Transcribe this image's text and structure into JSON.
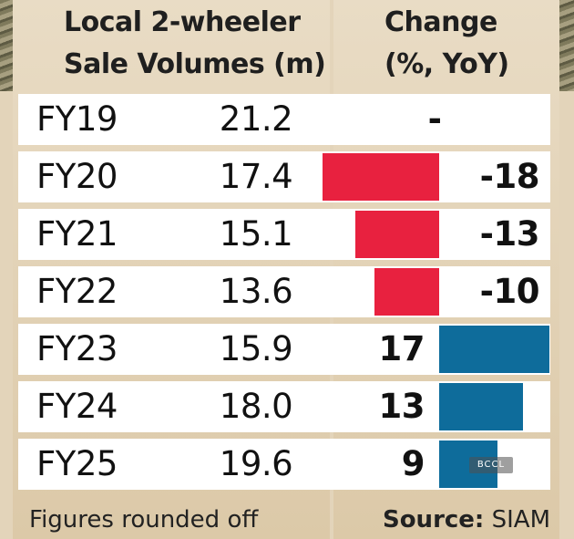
{
  "header": {
    "left_line1": "Local 2-wheeler",
    "left_line2": "Sale Volumes (m)",
    "right_line1": "Change",
    "right_line2": "(%, YoY)"
  },
  "chart_data": {
    "type": "table",
    "columns": [
      "Local 2-wheeler Sale Volumes (m)",
      "Change (%, YoY)"
    ],
    "rows": [
      {
        "year": "FY19",
        "volume": "21.2",
        "change": "-",
        "change_value": null
      },
      {
        "year": "FY20",
        "volume": "17.4",
        "change": "-18",
        "change_value": -18
      },
      {
        "year": "FY21",
        "volume": "15.1",
        "change": "-13",
        "change_value": -13
      },
      {
        "year": "FY22",
        "volume": "13.6",
        "change": "-10",
        "change_value": -10
      },
      {
        "year": "FY23",
        "volume": "15.9",
        "change": "17",
        "change_value": 17
      },
      {
        "year": "FY24",
        "volume": "18.0",
        "change": "13",
        "change_value": 13
      },
      {
        "year": "FY25",
        "volume": "19.6",
        "change": "9",
        "change_value": 9
      }
    ],
    "colors": {
      "negative": "#e8213f",
      "positive": "#0e6c9b"
    }
  },
  "footer": {
    "note": "Figures rounded off",
    "source_label": "Source:",
    "source_value": "SIAM"
  },
  "watermark": "BCCL"
}
